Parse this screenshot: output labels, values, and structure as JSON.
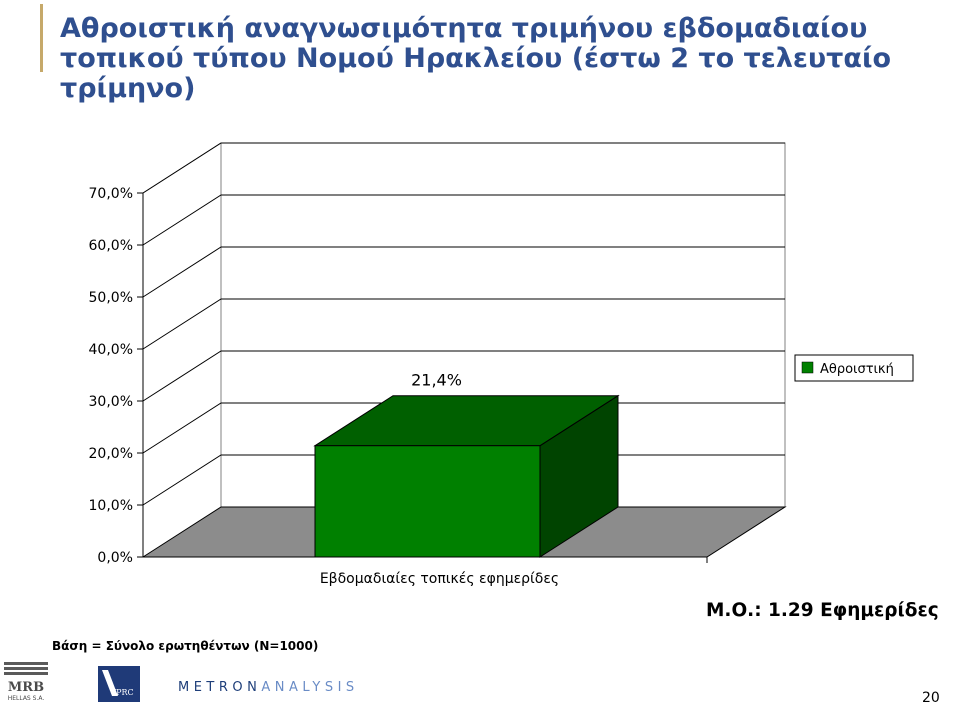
{
  "slide": {
    "title": "Αθροιστική αναγνωσιμότητα τριμήνου εβδομαδιαίου τοπικού τύπου Νομού Ηρακλείου (έστω 2 το τελευταίο τρίμηνο)",
    "mo_label": "Μ.Ο.: 1.29 Εφημερίδες",
    "basis": "Βάση = Σύνολο ερωτηθέντων (Ν=1000)",
    "page_number": "20",
    "logos": {
      "mrb_line1": "MRB",
      "mrb_line2": "HELLAS S.A.",
      "vprc": "VPRC",
      "metron_part1": "METRON",
      "metron_part2": "ANALYSIS"
    }
  },
  "chart_data": {
    "type": "bar",
    "categories": [
      "Εβδομαδιαίες τοπικές εφημερίδες"
    ],
    "series": [
      {
        "name": "Αθροιστική",
        "values": [
          21.4
        ]
      }
    ],
    "data_labels": [
      "21,4%"
    ],
    "ylim": [
      0,
      70
    ],
    "yticks": [
      "0,0%",
      "10,0%",
      "20,0%",
      "30,0%",
      "40,0%",
      "50,0%",
      "60,0%",
      "70,0%"
    ],
    "ytick_values": [
      0,
      10,
      20,
      30,
      40,
      50,
      60,
      70
    ],
    "grid": true,
    "legend_position": "right",
    "colors": {
      "bar_front": "#008000",
      "bar_top": "#006000",
      "bar_side": "#004400",
      "floor": "#8c8c8c",
      "legend_swatch": "#008000"
    }
  }
}
